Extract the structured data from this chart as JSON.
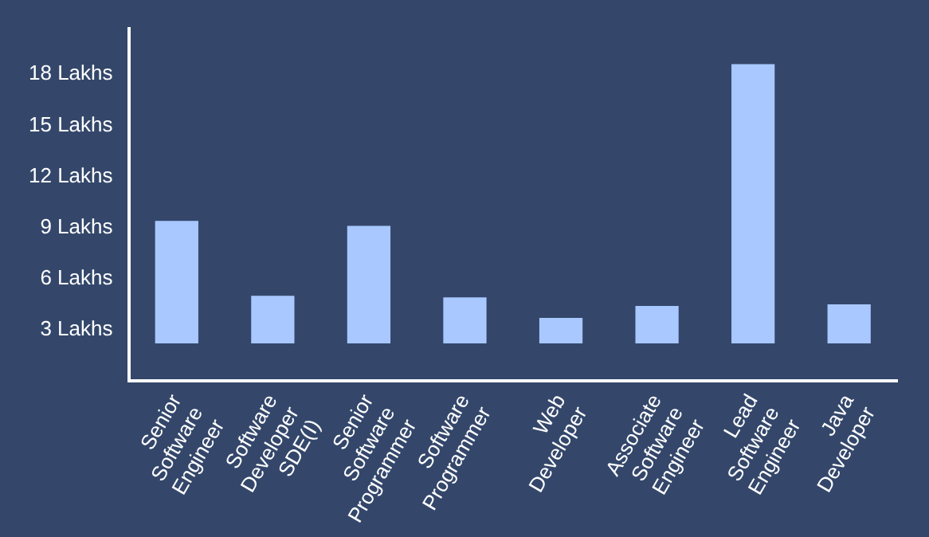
{
  "chart_data": {
    "type": "bar",
    "categories": [
      "Senior Software Engineer",
      "Software Developer SDE(I)",
      "Senior Software Programmer",
      "Software Programmer",
      "Web Developer",
      "Associate Software Engineer",
      "Lead Software Engineer",
      "Java Developer"
    ],
    "values": [
      7.2,
      2.8,
      6.9,
      2.7,
      1.5,
      2.2,
      16.4,
      2.3
    ],
    "base": [
      2.2,
      2.2,
      2.2,
      2.2,
      2.2,
      2.2,
      2.2,
      2.2
    ],
    "color": "#a8c8ff",
    "ylim": [
      0,
      20.7
    ],
    "yticks": [
      {
        "value": 3,
        "label": "3 Lakhs"
      },
      {
        "value": 6,
        "label": "6 Lakhs"
      },
      {
        "value": 9,
        "label": "9 Lakhs"
      },
      {
        "value": 12,
        "label": "12 Lakhs"
      },
      {
        "value": 15,
        "label": "15 Lakhs"
      },
      {
        "value": 18,
        "label": "18 Lakhs"
      }
    ],
    "grid": false,
    "legend": false
  }
}
